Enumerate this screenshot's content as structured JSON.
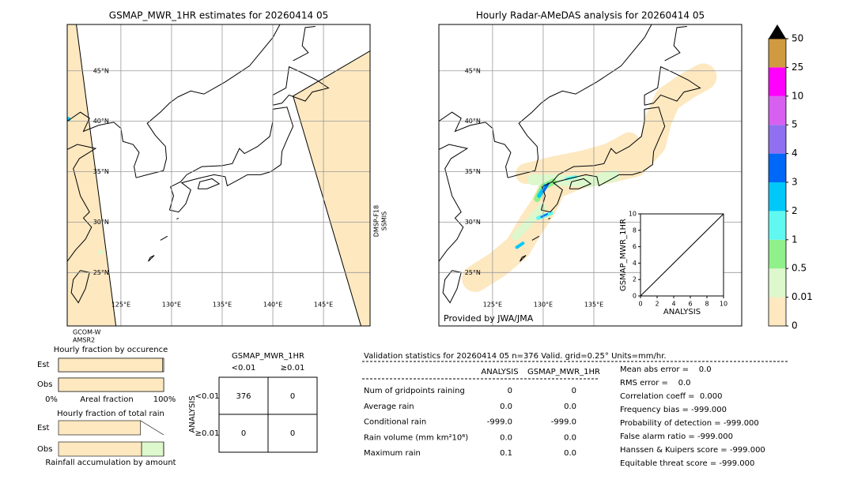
{
  "left_map": {
    "title": "GSMAP_MWR_1HR estimates for 20260414 05",
    "lon_lim": [
      119.7,
      149.6
    ],
    "lat_lim": [
      19.7,
      49.6
    ],
    "lon_ticks": [
      {
        "value": 125,
        "label": "125°E"
      },
      {
        "value": 130,
        "label": "130°E"
      },
      {
        "value": 135,
        "label": "135°E"
      },
      {
        "value": 140,
        "label": "140°E"
      },
      {
        "value": 145,
        "label": "145°E"
      }
    ],
    "lat_ticks": [
      {
        "value": 45,
        "label": "45°N"
      },
      {
        "value": 40,
        "label": "40°N"
      },
      {
        "value": 35,
        "label": "35°N"
      },
      {
        "value": 30,
        "label": "30°N"
      },
      {
        "value": 25,
        "label": "25°N"
      }
    ],
    "satellite_label": [
      "GCOM-W",
      "AMSR2"
    ],
    "swath_label": [
      "DMSP-F18",
      "SSMIS"
    ]
  },
  "right_map": {
    "title": "Hourly Radar-AMeDAS analysis for 20260414 05",
    "lon_lim": [
      119.7,
      149.6
    ],
    "lat_lim": [
      19.7,
      49.6
    ],
    "lon_ticks": [
      {
        "value": 125,
        "label": "125°E"
      },
      {
        "value": 130,
        "label": "130°E"
      },
      {
        "value": 135,
        "label": "135°E"
      }
    ],
    "lat_ticks": [
      {
        "value": 45,
        "label": "45°N"
      },
      {
        "value": 40,
        "label": "40°N"
      },
      {
        "value": 35,
        "label": "35°N"
      },
      {
        "value": 30,
        "label": "30°N"
      },
      {
        "value": 25,
        "label": "25°N"
      }
    ],
    "credit": "Provided by JWA/JMA"
  },
  "colorbar": {
    "ticks": [
      0,
      0.01,
      0.5,
      1,
      2,
      3,
      4,
      5,
      10,
      25,
      50
    ],
    "colors": [
      "#fde8c0",
      "#dcf8cc",
      "#90f08a",
      "#60f8f0",
      "#00c8f8",
      "#0068f8",
      "#9070f0",
      "#d860f0",
      "#ff00ff",
      "#d09a40"
    ],
    "extend_color": "#000000"
  },
  "inset": {
    "xlabel": "ANALYSIS",
    "ylabel": "GSMAP_MWR_1HR",
    "xlim": [
      0,
      10
    ],
    "ylim": [
      0,
      10
    ],
    "xticks": [
      0,
      2,
      4,
      6,
      8,
      10
    ],
    "yticks": [
      0,
      2,
      4,
      6,
      8,
      10
    ]
  },
  "occurrence": {
    "title": "Hourly fraction by occurence",
    "rows": [
      "Est",
      "Obs"
    ],
    "color": "#fde8c0",
    "values": [
      0.99,
      1
    ],
    "axis_labels": [
      "0%",
      "Areal fraction",
      "100%"
    ]
  },
  "accumulation": {
    "title": "Hourly fraction of total rain",
    "rows": [
      "Est",
      "Obs"
    ],
    "series": [
      {
        "color": "#fde8c0",
        "values": [
          0.78,
          0.79
        ]
      },
      {
        "color": "#dcf8cc",
        "values": [
          0,
          0.21
        ]
      }
    ],
    "xlabel": "Rainfall accumulation by amount"
  },
  "contingency": {
    "title": "GSMAP_MWR_1HR",
    "col_headers": [
      "<0.01",
      "≥0.01"
    ],
    "row_title": "ANALYSIS",
    "row_headers": [
      "<0.01",
      "≥0.01"
    ],
    "cells": [
      [
        "376",
        "0"
      ],
      [
        "0",
        "0"
      ]
    ]
  },
  "validation": {
    "header": "Validation statistics for 20260414 05  n=376 Valid. grid=0.25° Units=mm/hr.",
    "columns": [
      "ANALYSIS",
      "GSMAP_MWR_1HR"
    ],
    "rows": [
      {
        "label": "Num of gridpoints raining",
        "values": [
          "0",
          "0"
        ]
      },
      {
        "label": "Average rain",
        "values": [
          "0.0",
          "0.0"
        ]
      },
      {
        "label": "Conditional rain",
        "values": [
          "-999.0",
          "-999.0"
        ]
      },
      {
        "label": "Rain volume (mm km²10⁶)",
        "values": [
          "0.0",
          "0.0"
        ]
      },
      {
        "label": "Maximum rain",
        "values": [
          "0.1",
          "0.0"
        ]
      }
    ],
    "scores": [
      "Mean abs error =    0.0",
      "RMS error =    0.0",
      "Correlation coeff =  0.000",
      "Frequency bias = -999.000",
      "Probability of detection = -999.000",
      "False alarm ratio = -999.000",
      "Hanssen & Kuipers score = -999.000",
      "Equitable threat score = -999.000"
    ]
  }
}
